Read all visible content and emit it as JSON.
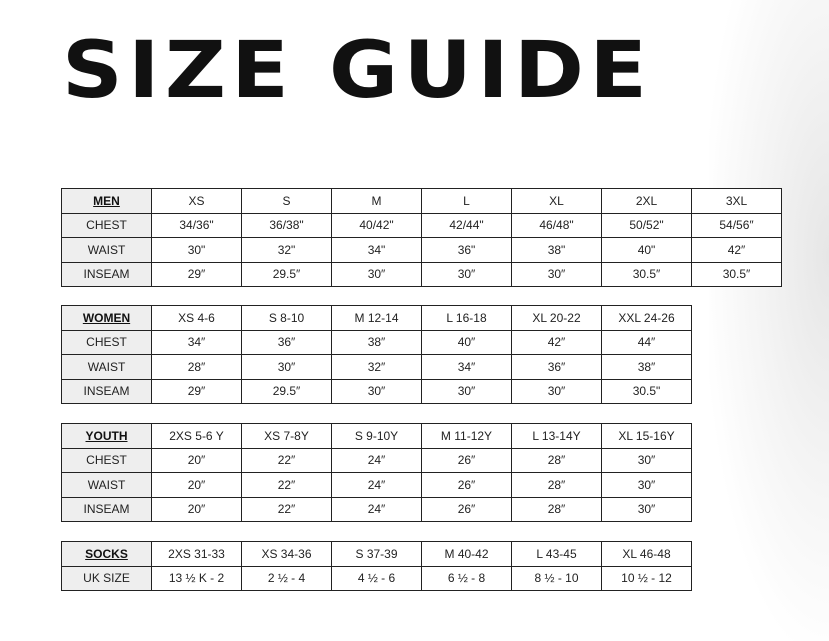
{
  "title": "SIZE GUIDE",
  "tables": [
    {
      "name": "MEN",
      "header": [
        "XS",
        "S",
        "M",
        "L",
        "XL",
        "2XL",
        "3XL"
      ],
      "rows": [
        {
          "label": "CHEST",
          "values": [
            "34/36\"",
            "36/38\"",
            "40/42\"",
            "42/44\"",
            "46/48\"",
            "50/52\"",
            "54/56″"
          ]
        },
        {
          "label": "WAIST",
          "values": [
            "30\"",
            "32\"",
            "34\"",
            "36\"",
            "38\"",
            "40\"",
            "42″"
          ]
        },
        {
          "label": "INSEAM",
          "values": [
            "29″",
            "29.5″",
            "30″",
            "30″",
            "30″",
            "30.5″",
            "30.5″"
          ]
        }
      ]
    },
    {
      "name": "WOMEN",
      "header": [
        "XS 4-6",
        "S 8-10",
        "M 12-14",
        "L 16-18",
        "XL 20-22",
        "XXL 24-26"
      ],
      "rows": [
        {
          "label": "CHEST",
          "values": [
            "34″",
            "36″",
            "38″",
            "40″",
            "42″",
            "44″"
          ]
        },
        {
          "label": "WAIST",
          "values": [
            "28″",
            "30″",
            "32″",
            "34″",
            "36″",
            "38″"
          ]
        },
        {
          "label": "INSEAM",
          "values": [
            "29″",
            "29.5″",
            "30″",
            "30″",
            "30″",
            "30.5\""
          ]
        }
      ]
    },
    {
      "name": "YOUTH",
      "header": [
        "2XS 5-6 Y",
        "XS 7-8Y",
        "S 9-10Y",
        "M 11-12Y",
        "L 13-14Y",
        "XL 15-16Y"
      ],
      "rows": [
        {
          "label": "CHEST",
          "values": [
            "20″",
            "22″",
            "24″",
            "26″",
            "28″",
            "30″"
          ]
        },
        {
          "label": "WAIST",
          "values": [
            "20″",
            "22″",
            "24″",
            "26″",
            "28″",
            "30″"
          ]
        },
        {
          "label": "INSEAM",
          "values": [
            "20″",
            "22″",
            "24″",
            "26″",
            "28″",
            "30″"
          ]
        }
      ]
    },
    {
      "name": "SOCKS",
      "header": [
        "2XS 31-33",
        "XS 34-36",
        "S 37-39",
        "M 40-42",
        "L 43-45",
        "XL 46-48"
      ],
      "rows": [
        {
          "label": "UK SIZE",
          "values": [
            "13 ½ K - 2",
            "2 ½ - 4",
            "4 ½ - 6",
            "6 ½ - 8",
            "8 ½ - 10",
            "10 ½ - 12"
          ]
        }
      ]
    }
  ]
}
